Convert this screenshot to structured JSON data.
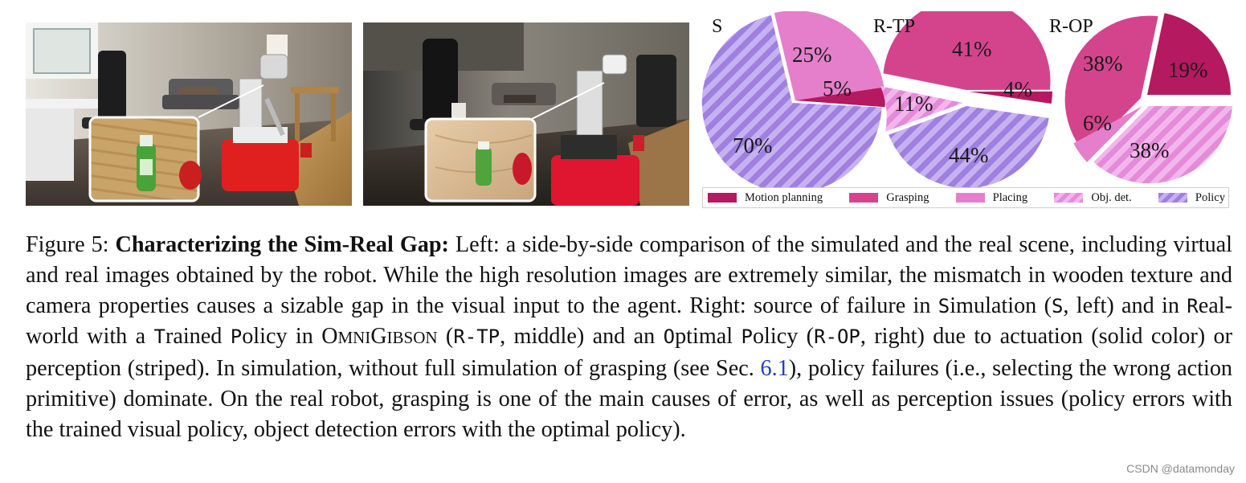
{
  "pies": [
    {
      "title": "S",
      "slices": [
        {
          "label": "5%",
          "value": 5,
          "category": "Motion planning"
        },
        {
          "label": "25%",
          "value": 25,
          "category": "Placing"
        },
        {
          "label": "70%",
          "value": 70,
          "category": "Policy"
        }
      ]
    },
    {
      "title": "R-TP",
      "slices": [
        {
          "label": "41%",
          "value": 41,
          "category": "Grasping"
        },
        {
          "label": "4%",
          "value": 4,
          "category": "Motion planning"
        },
        {
          "label": "11%",
          "value": 11,
          "category": "Obj. det."
        },
        {
          "label": "44%",
          "value": 44,
          "category": "Policy"
        }
      ]
    },
    {
      "title": "R-OP",
      "slices": [
        {
          "label": "38%",
          "value": 38,
          "category": "Grasping"
        },
        {
          "label": "19%",
          "value": 19,
          "category": "Motion planning"
        },
        {
          "label": "6%",
          "value": 6,
          "category": "Placing"
        },
        {
          "label": "38%",
          "value": 38,
          "category": "Obj. det."
        }
      ]
    }
  ],
  "legend": [
    {
      "label": "Motion planning",
      "color": "#b5195f",
      "striped": false
    },
    {
      "label": "Grasping",
      "color": "#d4448d",
      "striped": false
    },
    {
      "label": "Placing",
      "color": "#e57fcb",
      "striped": false
    },
    {
      "label": "Obj. det.",
      "color": "#ee96e3",
      "striped": true
    },
    {
      "label": "Policy",
      "color": "#a88ae6",
      "striped": true
    }
  ],
  "caption": {
    "figure_label": "Figure 5:",
    "bold_title": "Characterizing the Sim-Real Gap:",
    "t1": " Left: a side-by-side comparison of the simulated and the real scene, including virtual and real images obtained by the robot. While the high resolution images are extremely similar, the mismatch in wooden texture and camera properties causes a sizable gap in the visual input to the agent. Right: source of failure in ",
    "sim_word": "S",
    "sim_rest": "imulation (",
    "sim_abbr": "S",
    "t2": ", left) and in ",
    "real_R": "R",
    "real_rest": "eal-world with a ",
    "trained_T": "T",
    "trained_rest": "rained ",
    "policy_P": "P",
    "t3": "olicy in ",
    "omni_O": "O",
    "omni_mni": "MNI",
    "omni_G": "G",
    "omni_ibson": "IBSON",
    "t4": " (",
    "rtp_abbr": "R-TP",
    "t5": ", middle) and an ",
    "optimal_O": "O",
    "optimal_rest": "ptimal ",
    "policy2_P": "P",
    "t6": "olicy (",
    "rop_abbr": "R-OP",
    "t7": ", right) due to actuation (solid color) or perception (striped). In simulation, without full simulation of grasping (see Sec. ",
    "sec_ref": "6.1",
    "t8": "), policy failures (i.e., selecting the wrong action primitive) dominate. On the real robot, grasping is one of the main causes of error, as well as perception issues (policy errors with the trained visual policy, object detection errors with the optimal policy)."
  },
  "watermark": "CSDN @datamonday"
}
